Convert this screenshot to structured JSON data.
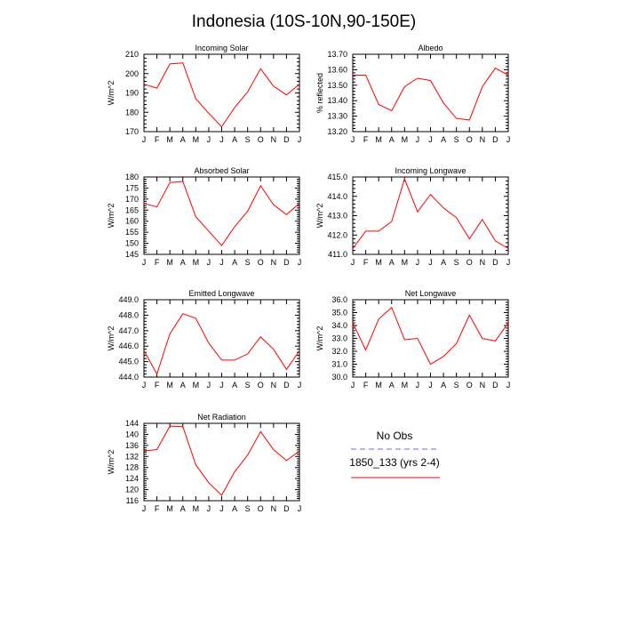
{
  "title": "Indonesia (10S-10N,90-150E)",
  "months": [
    "J",
    "F",
    "M",
    "A",
    "M",
    "J",
    "J",
    "A",
    "S",
    "O",
    "N",
    "D",
    "J"
  ],
  "colors": {
    "model": "#ff0000",
    "obs": "#6666ff",
    "axis": "#000000"
  },
  "legend": {
    "obs_label": "No Obs",
    "model_label": "1850_133 (yrs 2-4)"
  },
  "chart_data": [
    {
      "type": "line",
      "title": "Incoming Solar",
      "ylabel": "W/m^2",
      "ylim": [
        170,
        210
      ],
      "yticks": [
        "170",
        "180",
        "190",
        "200",
        "210"
      ],
      "x": [
        "J",
        "F",
        "M",
        "A",
        "M",
        "J",
        "J",
        "A",
        "S",
        "O",
        "N",
        "D",
        "J"
      ],
      "series": [
        {
          "name": "1850_133 (yrs 2-4)",
          "values": [
            194.5,
            192.5,
            205,
            205.5,
            187,
            179.5,
            172.5,
            182.5,
            190.5,
            202.5,
            193.5,
            189,
            194.5
          ]
        }
      ]
    },
    {
      "type": "line",
      "title": "Albedo",
      "ylabel": "% reflected",
      "ylim": [
        13.2,
        13.7
      ],
      "yticks": [
        "13.20",
        "13.30",
        "13.40",
        "13.50",
        "13.60",
        "13.70"
      ],
      "x": [
        "J",
        "F",
        "M",
        "A",
        "M",
        "J",
        "J",
        "A",
        "S",
        "O",
        "N",
        "D",
        "J"
      ],
      "series": [
        {
          "name": "1850_133 (yrs 2-4)",
          "values": [
            13.565,
            13.565,
            13.375,
            13.335,
            13.49,
            13.545,
            13.53,
            13.385,
            13.285,
            13.275,
            13.49,
            13.61,
            13.565
          ]
        }
      ]
    },
    {
      "type": "line",
      "title": "Absorbed Solar",
      "ylabel": "W/m^2",
      "ylim": [
        145,
        180
      ],
      "yticks": [
        "145",
        "150",
        "155",
        "160",
        "165",
        "170",
        "175",
        "180"
      ],
      "x": [
        "J",
        "F",
        "M",
        "A",
        "M",
        "J",
        "J",
        "A",
        "S",
        "O",
        "N",
        "D",
        "J"
      ],
      "series": [
        {
          "name": "1850_133 (yrs 2-4)",
          "values": [
            168,
            166.5,
            177.5,
            178,
            162,
            155.5,
            149,
            157.5,
            164.5,
            176,
            167.5,
            163,
            168
          ]
        }
      ]
    },
    {
      "type": "line",
      "title": "Incoming Longwave",
      "ylabel": "W/m^2",
      "ylim": [
        411,
        415
      ],
      "yticks": [
        "411.0",
        "412.0",
        "413.0",
        "414.0",
        "415.0"
      ],
      "x": [
        "J",
        "F",
        "M",
        "A",
        "M",
        "J",
        "J",
        "A",
        "S",
        "O",
        "N",
        "D",
        "J"
      ],
      "series": [
        {
          "name": "1850_133 (yrs 2-4)",
          "values": [
            411.3,
            412.2,
            412.2,
            412.7,
            414.9,
            413.2,
            414.1,
            413.4,
            412.9,
            411.8,
            412.8,
            411.7,
            411.3
          ]
        }
      ]
    },
    {
      "type": "line",
      "title": "Emitted Longwave",
      "ylabel": "W/m^2",
      "ylim": [
        444,
        449
      ],
      "yticks": [
        "444.0",
        "445.0",
        "446.0",
        "447.0",
        "448.0",
        "449.0"
      ],
      "x": [
        "J",
        "F",
        "M",
        "A",
        "M",
        "J",
        "J",
        "A",
        "S",
        "O",
        "N",
        "D",
        "J"
      ],
      "series": [
        {
          "name": "1850_133 (yrs 2-4)",
          "values": [
            445.7,
            444.2,
            446.8,
            448.1,
            447.8,
            446.2,
            445.1,
            445.1,
            445.5,
            446.6,
            445.8,
            444.5,
            445.7
          ]
        }
      ]
    },
    {
      "type": "line",
      "title": "Net Longwave",
      "ylabel": "W/m^2",
      "ylim": [
        30,
        36
      ],
      "yticks": [
        "30.0",
        "31.0",
        "32.0",
        "33.0",
        "34.0",
        "35.0",
        "36.0"
      ],
      "x": [
        "J",
        "F",
        "M",
        "A",
        "M",
        "J",
        "J",
        "A",
        "S",
        "O",
        "N",
        "D",
        "J"
      ],
      "series": [
        {
          "name": "1850_133 (yrs 2-4)",
          "values": [
            34.2,
            32.1,
            34.5,
            35.4,
            32.9,
            33.0,
            31.0,
            31.6,
            32.6,
            34.8,
            33.0,
            32.8,
            34.2
          ]
        }
      ]
    },
    {
      "type": "line",
      "title": "Net Radiation",
      "ylabel": "W/m^2",
      "ylim": [
        116,
        144
      ],
      "yticks": [
        "116",
        "120",
        "124",
        "128",
        "132",
        "136",
        "140",
        "144"
      ],
      "x": [
        "J",
        "F",
        "M",
        "A",
        "M",
        "J",
        "J",
        "A",
        "S",
        "O",
        "N",
        "D",
        "J"
      ],
      "series": [
        {
          "name": "1850_133 (yrs 2-4)",
          "values": [
            134,
            134.5,
            143,
            142.8,
            129,
            122.5,
            118,
            126.5,
            132.5,
            141,
            134.5,
            130.5,
            134
          ]
        }
      ]
    }
  ]
}
